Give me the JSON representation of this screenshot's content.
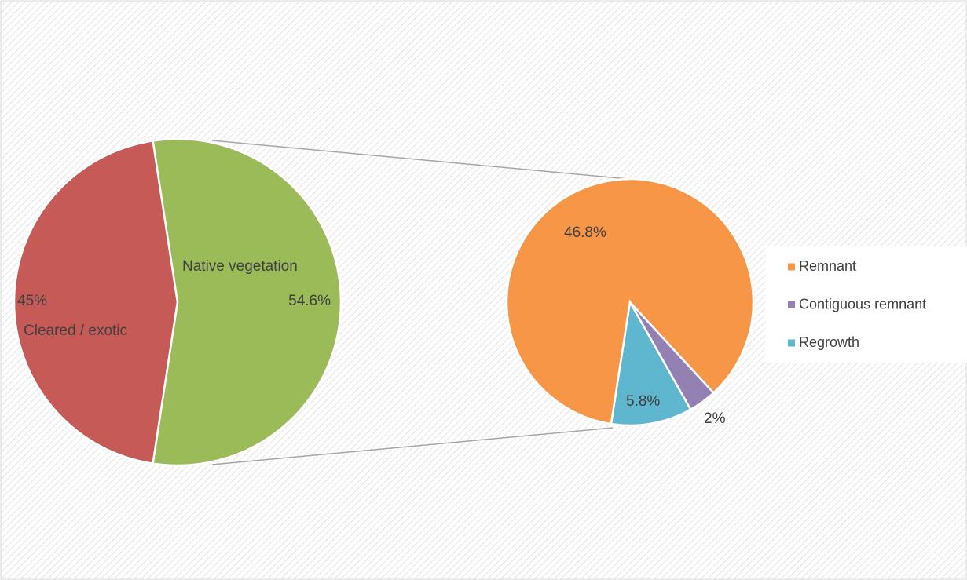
{
  "chart_data": [
    {
      "type": "pie",
      "categories": [
        "Cleared / exotic",
        "Native vegetation"
      ],
      "values": [
        45,
        54.6
      ],
      "value_labels": [
        "45%",
        "54.6%"
      ],
      "colors": [
        "#c65a57",
        "#9bbb59"
      ]
    },
    {
      "type": "pie",
      "categories": [
        "Remnant",
        "Contiguous remnant",
        "Regrowth"
      ],
      "values": [
        46.8,
        2,
        5.8
      ],
      "value_labels": [
        "46.8%",
        "2%",
        "5.8%"
      ],
      "colors": [
        "#f79646",
        "#9481b4",
        "#5fb6cf"
      ],
      "legend": "right"
    }
  ]
}
